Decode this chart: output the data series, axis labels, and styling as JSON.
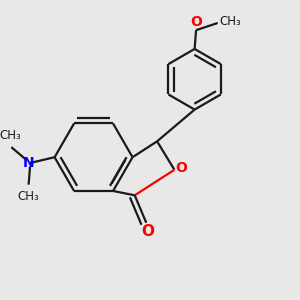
{
  "bg_color": "#e8e8e8",
  "bond_color": "#1a1a1a",
  "oxygen_color": "#ff0000",
  "nitrogen_color": "#0000ff",
  "lw": 1.6,
  "figsize": [
    3.0,
    3.0
  ],
  "dpi": 100,
  "xlim": [
    0.0,
    1.0
  ],
  "ylim": [
    0.0,
    1.0
  ]
}
